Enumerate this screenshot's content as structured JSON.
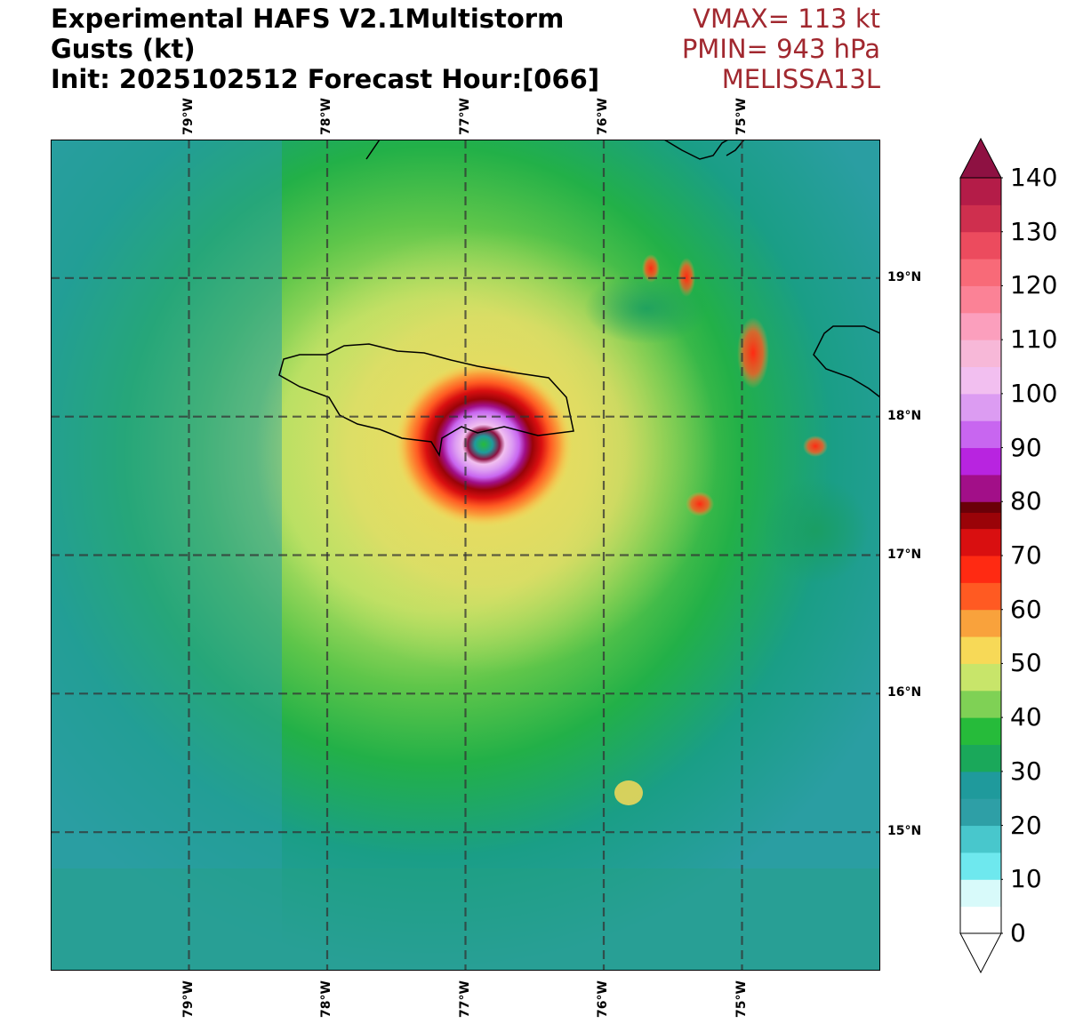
{
  "title": {
    "line1": "Experimental HAFS V2.1Multistorm",
    "line2": "Gusts (kt)",
    "line3": "Init: 2025102512 Forecast Hour:[066]"
  },
  "stats": {
    "vmax": "VMAX= 113 kt",
    "pmin": "PMIN= 943 hPa",
    "storm": "MELISSA13L",
    "color": "#a1282f"
  },
  "map": {
    "lon_labels": [
      "79°W",
      "78°W",
      "77°W",
      "76°W",
      "75°W"
    ],
    "lat_labels": [
      "19°N",
      "18°N",
      "17°N",
      "16°N",
      "15°N"
    ],
    "lon_range": [
      -80,
      -74
    ],
    "lat_range": [
      14,
      20
    ],
    "center_lon": -76.87,
    "center_lat": 17.83,
    "gridlines": "dashed"
  },
  "colorbar": {
    "label": "Gusts (kt)",
    "ticks": [
      "0",
      "10",
      "20",
      "30",
      "40",
      "50",
      "60",
      "70",
      "80",
      "90",
      "100",
      "110",
      "120",
      "130",
      "140"
    ],
    "min": 0,
    "max": 140,
    "extend": "both",
    "colors": [
      {
        "v": 0,
        "c": "#ffffff"
      },
      {
        "v": 5,
        "c": "#d8fafa"
      },
      {
        "v": 10,
        "c": "#6ee8ee"
      },
      {
        "v": 15,
        "c": "#48c7cc"
      },
      {
        "v": 20,
        "c": "#2e9fa6"
      },
      {
        "v": 25,
        "c": "#1f9a9c"
      },
      {
        "v": 30,
        "c": "#1aa85a"
      },
      {
        "v": 35,
        "c": "#26bb3a"
      },
      {
        "v": 40,
        "c": "#7fd155"
      },
      {
        "v": 45,
        "c": "#c8e56a"
      },
      {
        "v": 50,
        "c": "#f7d957"
      },
      {
        "v": 55,
        "c": "#f9a23c"
      },
      {
        "v": 60,
        "c": "#ff5a22"
      },
      {
        "v": 65,
        "c": "#ff2a12"
      },
      {
        "v": 70,
        "c": "#d90f10"
      },
      {
        "v": 75,
        "c": "#9a0308"
      },
      {
        "v": 78,
        "c": "#6a0008"
      },
      {
        "v": 80,
        "c": "#a20f88"
      },
      {
        "v": 85,
        "c": "#b824e0"
      },
      {
        "v": 90,
        "c": "#c866f0"
      },
      {
        "v": 95,
        "c": "#dc9cf2"
      },
      {
        "v": 100,
        "c": "#f2bff0"
      },
      {
        "v": 105,
        "c": "#f7b8d8"
      },
      {
        "v": 110,
        "c": "#fb9fbd"
      },
      {
        "v": 115,
        "c": "#fb8296"
      },
      {
        "v": 120,
        "c": "#f86a78"
      },
      {
        "v": 125,
        "c": "#ec4b5e"
      },
      {
        "v": 130,
        "c": "#cf2f4e"
      },
      {
        "v": 135,
        "c": "#b41c48"
      },
      {
        "v": 140,
        "c": "#8e1142"
      }
    ]
  }
}
